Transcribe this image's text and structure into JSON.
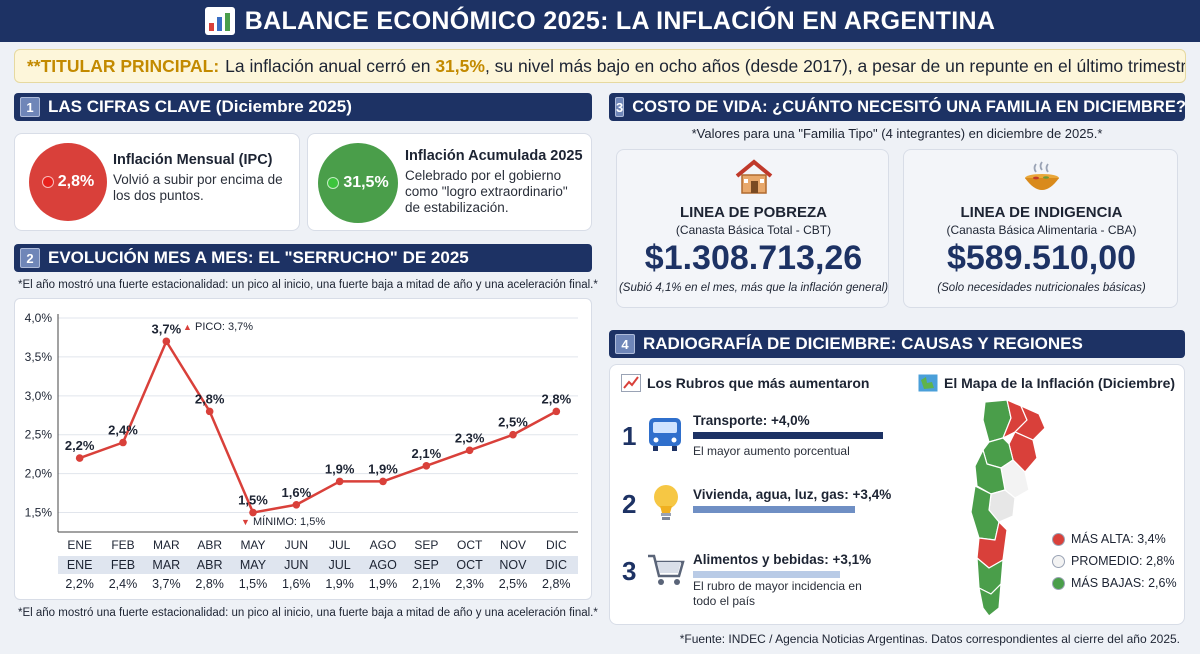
{
  "header": {
    "title": "BALANCE ECONÓMICO 2025: LA INFLACIÓN EN ARGENTINA",
    "icon": "bar-chart-icon"
  },
  "headline": {
    "lead": "**TITULAR PRINCIPAL:",
    "text_before": "La inflación anual cerró en",
    "emphasis": "31,5%",
    "text_after": ", su nivel más bajo en ocho años (desde 2017), a pesar de un repunte en el último trimestre."
  },
  "section1": {
    "number": "1",
    "title": "LAS CIFRAS CLAVE (Diciembre 2025)",
    "cards": [
      {
        "value": "2,8%",
        "title": "Inflación Mensual (IPC)",
        "desc": "Volvió a subir por encima de los dos puntos.",
        "color": "#d9403a"
      },
      {
        "value": "31,5%",
        "title": "Inflación Acumulada 2025",
        "desc": "Celebrado por el gobierno como \"logro extraordinario\" de estabilización.",
        "color": "#4a9e4a"
      }
    ]
  },
  "section2": {
    "number": "2",
    "title": "EVOLUCIÓN MES A MES: EL \"SERRUCHO\" DE 2025",
    "note_top": "*El año mostró una fuerte estacionalidad: un pico al inicio, una fuerte baja a mitad de año y una aceleración final.*",
    "note_bottom": "*El año mostró una fuerte estacionalidad: un pico al inicio, una fuerte baja a mitad de año y una aceleración final.*",
    "peak_label": "PICO: 3,7%",
    "min_label": "MÍNIMO: 1,5%",
    "table_months": [
      "ENE",
      "FEB",
      "MAR",
      "ABR",
      "MAY",
      "JUN",
      "JUL",
      "AGO",
      "SEP",
      "OCT",
      "NOV",
      "DIC"
    ],
    "table_values": [
      "2,2%",
      "2,4%",
      "3,7%",
      "2,8%",
      "1,5%",
      "1,6%",
      "1,9%",
      "1,9%",
      "2,1%",
      "2,3%",
      "2,5%",
      "2,8%"
    ]
  },
  "chart_data": {
    "type": "line",
    "categories": [
      "ENE",
      "FEB",
      "MAR",
      "ABR",
      "MAY",
      "JUN",
      "JUL",
      "AGO",
      "SEP",
      "OCT",
      "NOV",
      "DIC"
    ],
    "values": [
      2.2,
      2.4,
      3.7,
      2.8,
      1.5,
      1.6,
      1.9,
      1.9,
      2.1,
      2.3,
      2.5,
      2.8
    ],
    "data_labels": [
      "2,2%",
      "2,4%",
      "3,7%",
      "2,8%",
      "1,5%",
      "1,6%",
      "1,9%",
      "1,9%",
      "2,1%",
      "2,3%",
      "2,5%",
      "2,8%"
    ],
    "y_ticks": [
      1.5,
      2.0,
      2.5,
      3.0,
      3.5,
      4.0
    ],
    "y_tick_labels": [
      "1,5%",
      "2,0%",
      "2,5%",
      "3,0%",
      "3,5%",
      "4,0%"
    ],
    "ylim": [
      1.25,
      4.0
    ],
    "grid": true,
    "color": "#d9403a",
    "title": "",
    "xlabel": "",
    "ylabel": ""
  },
  "section3": {
    "number": "3",
    "title": "COSTO DE VIDA: ¿CUÁNTO NECESITÓ UNA FAMILIA EN DICIEMBRE?",
    "subtitle": "*Valores para una \"Familia Tipo\" (4 integrantes) en diciembre de 2025.*",
    "cards": [
      {
        "icon": "house-icon",
        "title": "LINEA DE POBREZA",
        "subtitle": "(Canasta Básica Total - CBT)",
        "value": "$1.308.713,26",
        "note": "(Subió 4,1% en el mes, más que la inflación general)"
      },
      {
        "icon": "soup-bowl-icon",
        "title": "LINEA DE INDIGENCIA",
        "subtitle": "(Canasta Básica Alimentaria - CBA)",
        "value": "$589.510,00",
        "note": "(Solo necesidades nutricionales básicas)"
      }
    ]
  },
  "section4": {
    "number": "4",
    "title": "RADIOGRAFÍA DE DICIEMBRE: CAUSAS Y REGIONES",
    "rubros_title": "Los Rubros que más aumentaron",
    "rubros": [
      {
        "rank": "1",
        "icon": "bus-icon",
        "label": "Transporte: +4,0%",
        "desc": "El mayor aumento porcentual",
        "value": 4.0,
        "color": "#1d3264"
      },
      {
        "rank": "2",
        "icon": "lightbulb-icon",
        "label": "Vivienda, agua, luz, gas: +3,4%",
        "desc": "",
        "value": 3.4,
        "color": "#6f8fc4"
      },
      {
        "rank": "3",
        "icon": "shopping-cart-icon",
        "label": "Alimentos y bebidas: +3,1%",
        "desc": "El rubro de mayor incidencia en todo el país",
        "value": 3.1,
        "color": "#b9cbe6"
      }
    ],
    "map_title": "El Mapa de la Inflación (Diciembre)",
    "legend": [
      {
        "label": "MÁS ALTA: 3,4%",
        "color": "#d9403a"
      },
      {
        "label": "PROMEDIO: 2,8%",
        "color": "#f3f3f3"
      },
      {
        "label": "MÁS BAJAS: 2,6%",
        "color": "#4a9e4a"
      }
    ]
  },
  "footer": {
    "source": "*Fuente: INDEC / Agencia Noticias Argentinas. Datos correspondientes al cierre del año 2025."
  }
}
